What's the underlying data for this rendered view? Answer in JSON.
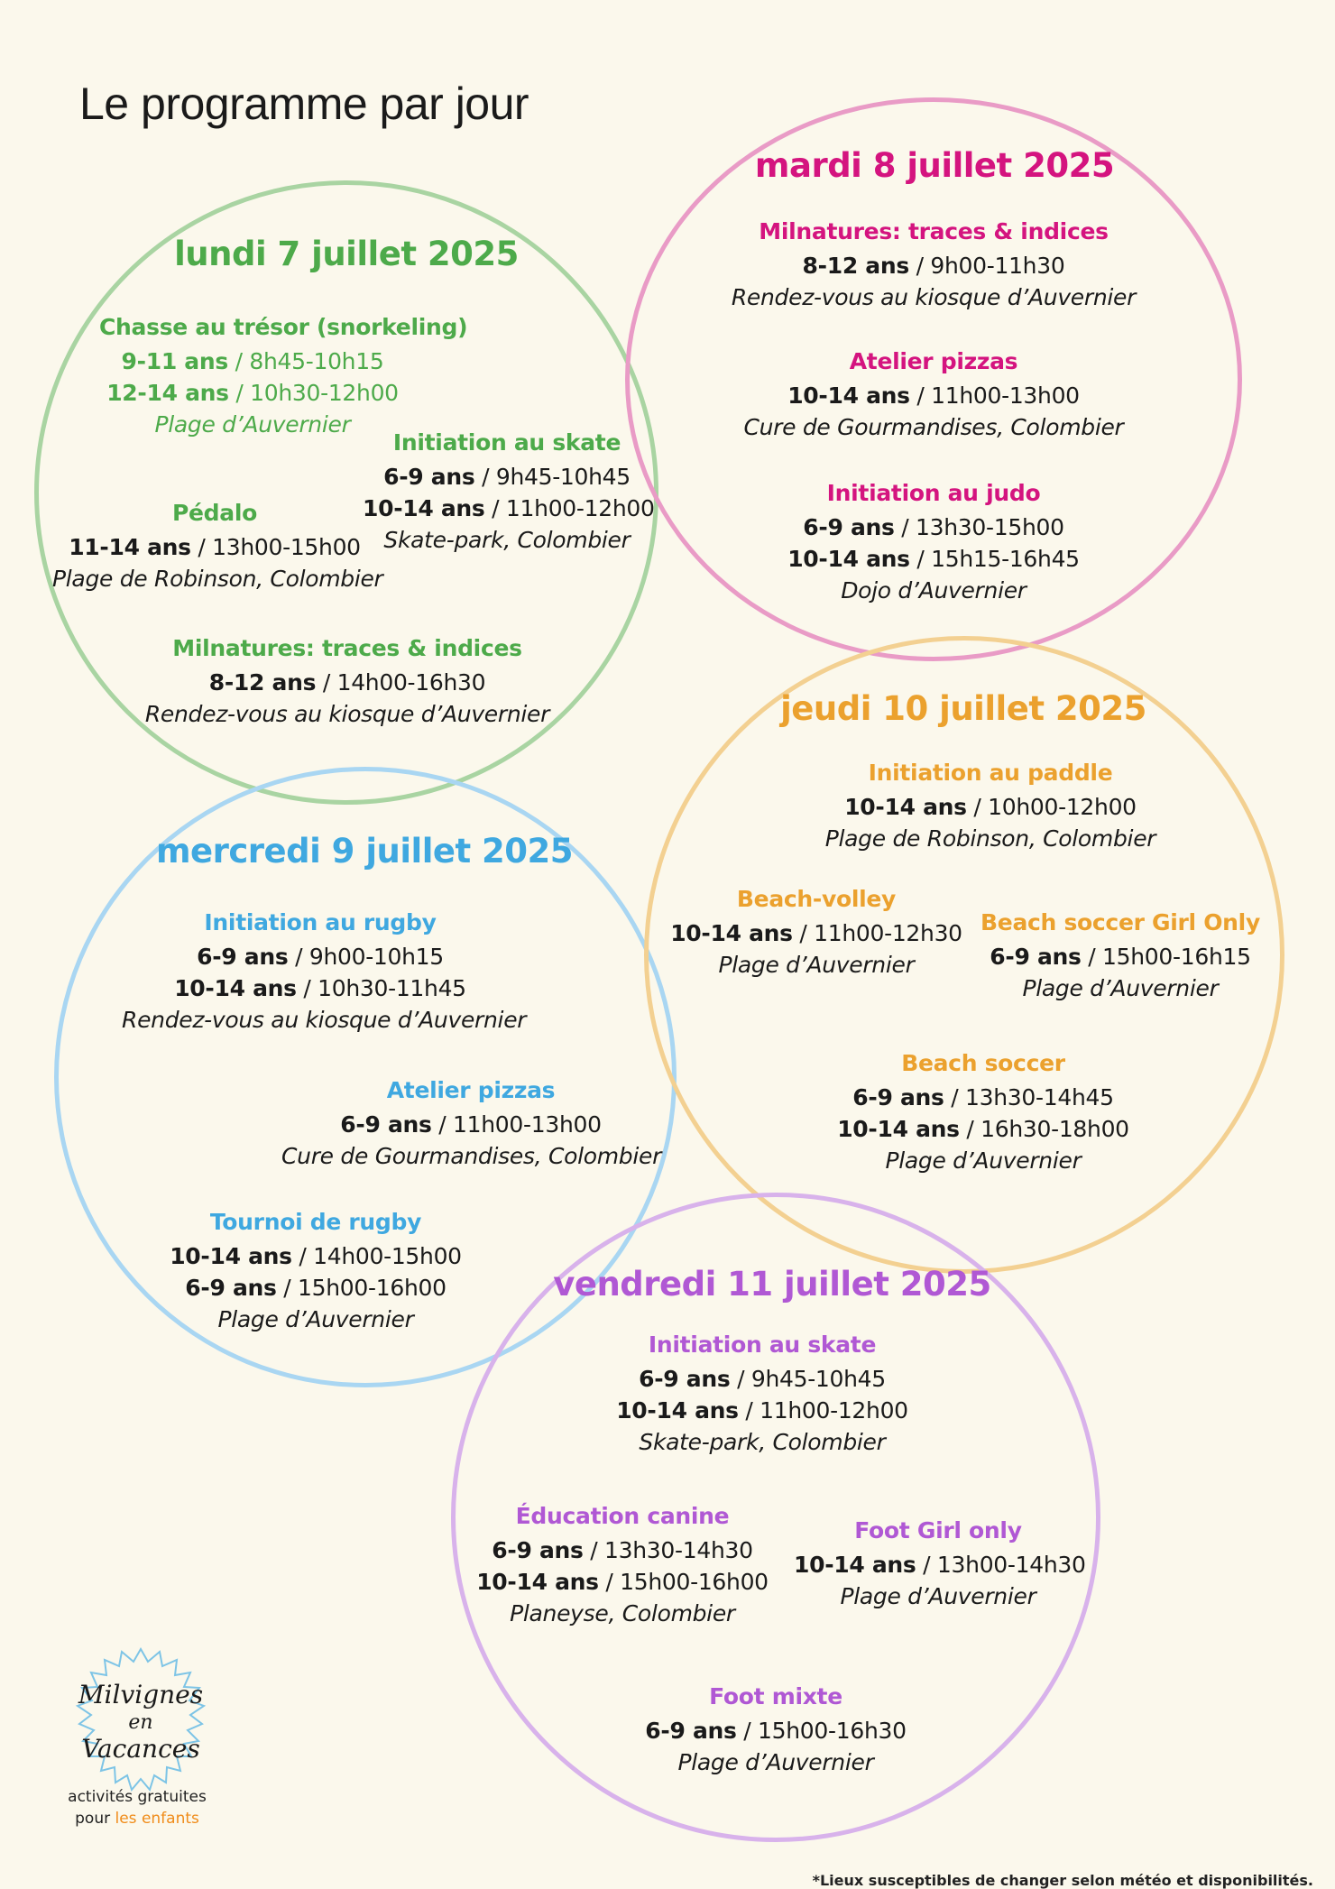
{
  "page_title": "Le programme par jour",
  "colors": {
    "monday": "#4daa4a",
    "monday_ring": "#a9d4a2",
    "tuesday": "#d4147f",
    "tuesday_ring": "#e99bc6",
    "wednesday": "#3fa8e0",
    "wednesday_ring": "#a9d6f2",
    "thursday": "#eba12e",
    "thursday_ring": "#f3d091",
    "friday": "#b058d4",
    "friday_ring": "#d8b2eb"
  },
  "days": {
    "monday": {
      "title": "lundi 7 juillet 2025",
      "activities": [
        {
          "name": "Chasse au trésor (snorkeling)",
          "slots": [
            {
              "age": "9-11 ans",
              "time": " / 8h45-10h15"
            },
            {
              "age": "12-14 ans",
              "time": " / 10h30-12h00"
            }
          ],
          "place": "Plage d’Auvernier"
        },
        {
          "name": "Initiation au skate",
          "slots": [
            {
              "age": "6-9 ans",
              "time": " / 9h45-10h45"
            },
            {
              "age": "10-14 ans",
              "time": " / 11h00-12h00"
            }
          ],
          "place": "Skate-park, Colombier"
        },
        {
          "name": "Pédalo",
          "slots": [
            {
              "age": "11-14 ans",
              "time": " / 13h00-15h00"
            }
          ],
          "place": "Plage de Robinson, Colombier"
        },
        {
          "name": "Milnatures: traces & indices",
          "slots": [
            {
              "age": "8-12 ans",
              "time": " / 14h00-16h30"
            }
          ],
          "place": "Rendez-vous au kiosque d’Auvernier"
        }
      ]
    },
    "tuesday": {
      "title": "mardi 8 juillet 2025",
      "activities": [
        {
          "name": "Milnatures: traces & indices",
          "slots": [
            {
              "age": "8-12 ans",
              "time": " / 9h00-11h30"
            }
          ],
          "place": "Rendez-vous au kiosque d’Auvernier"
        },
        {
          "name": "Atelier pizzas",
          "slots": [
            {
              "age": "10-14 ans",
              "time": " / 11h00-13h00"
            }
          ],
          "place": "Cure de Gourmandises, Colombier"
        },
        {
          "name": "Initiation au judo",
          "slots": [
            {
              "age": "6-9 ans",
              "time": " / 13h30-15h00"
            },
            {
              "age": "10-14 ans",
              "time": " / 15h15-16h45"
            }
          ],
          "place": "Dojo d’Auvernier"
        }
      ]
    },
    "wednesday": {
      "title": "mercredi 9 juillet 2025",
      "activities": [
        {
          "name": "Initiation au rugby",
          "slots": [
            {
              "age": "6-9 ans",
              "time": " / 9h00-10h15"
            },
            {
              "age": "10-14 ans",
              "time": " / 10h30-11h45"
            }
          ],
          "place": "Rendez-vous au kiosque d’Auvernier"
        },
        {
          "name": "Atelier pizzas",
          "slots": [
            {
              "age": "6-9 ans",
              "time": " / 11h00-13h00"
            }
          ],
          "place": "Cure de Gourmandises, Colombier"
        },
        {
          "name": "Tournoi de rugby",
          "slots": [
            {
              "age": "10-14 ans",
              "time": " / 14h00-15h00"
            },
            {
              "age": "6-9 ans",
              "time": " / 15h00-16h00"
            }
          ],
          "place": "Plage d’Auvernier"
        }
      ]
    },
    "thursday": {
      "title": "jeudi 10 juillet 2025",
      "activities": [
        {
          "name": "Initiation au paddle",
          "slots": [
            {
              "age": "10-14 ans",
              "time": " / 10h00-12h00"
            }
          ],
          "place": "Plage de Robinson, Colombier"
        },
        {
          "name": "Beach-volley",
          "slots": [
            {
              "age": "10-14 ans",
              "time": " / 11h00-12h30"
            }
          ],
          "place": "Plage d’Auvernier"
        },
        {
          "name": "Beach soccer Girl Only",
          "slots": [
            {
              "age": "6-9 ans",
              "time": " / 15h00-16h15"
            }
          ],
          "place": "Plage d’Auvernier"
        },
        {
          "name": "Beach soccer",
          "slots": [
            {
              "age": "6-9 ans",
              "time": " / 13h30-14h45"
            },
            {
              "age": "10-14 ans",
              "time": " / 16h30-18h00"
            }
          ],
          "place": "Plage d’Auvernier"
        }
      ]
    },
    "friday": {
      "title": "vendredi 11 juillet 2025",
      "activities": [
        {
          "name": "Initiation au skate",
          "slots": [
            {
              "age": "6-9 ans",
              "time": " / 9h45-10h45"
            },
            {
              "age": "10-14 ans",
              "time": " / 11h00-12h00"
            }
          ],
          "place": "Skate-park, Colombier"
        },
        {
          "name": "Éducation canine",
          "slots": [
            {
              "age": "6-9 ans",
              "time": " / 13h30-14h30"
            },
            {
              "age": "10-14 ans",
              "time": " / 15h00-16h00"
            }
          ],
          "place": "Planeyse, Colombier"
        },
        {
          "name": "Foot Girl only",
          "slots": [
            {
              "age": "10-14 ans",
              "time": " / 13h00-14h30"
            }
          ],
          "place": "Plage d’Auvernier"
        },
        {
          "name": "Foot mixte",
          "slots": [
            {
              "age": "6-9 ans",
              "time": " / 15h00-16h30"
            }
          ],
          "place": "Plage d’Auvernier"
        }
      ]
    }
  },
  "logo": {
    "text_line1": "Milvignes",
    "text_line2": "en",
    "text_line3": "Vacances",
    "icon": "sun-badge-icon"
  },
  "tagline": {
    "line1": "activités gratuites",
    "line2_prefix": "pour ",
    "line2_les": "les",
    "line2_space": " ",
    "line2_enfants": "enfants"
  },
  "footnote": "*Lieux susceptibles de changer selon météo et disponibilités."
}
